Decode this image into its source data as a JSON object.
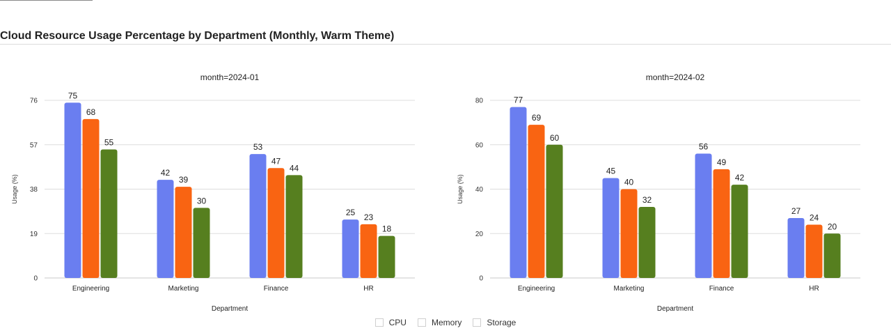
{
  "page": {
    "title": "Cloud Resource Usage Percentage by Department (Monthly, Warm Theme)"
  },
  "legend": [
    {
      "label": "CPU"
    },
    {
      "label": "Memory"
    },
    {
      "label": "Storage"
    }
  ],
  "colors": {
    "CPU": "#6a7ef0",
    "Memory": "#f96412",
    "Storage": "#567f1f"
  },
  "chart_data": [
    {
      "type": "bar",
      "title": "month=2024-01",
      "xlabel": "Department",
      "ylabel": "Usage (%)",
      "categories": [
        "Engineering",
        "Marketing",
        "Finance",
        "HR"
      ],
      "yticks": [
        0,
        19,
        38,
        57,
        76
      ],
      "ylim": [
        0,
        76
      ],
      "grid": true,
      "series": [
        {
          "name": "CPU",
          "values": [
            75,
            42,
            53,
            25
          ]
        },
        {
          "name": "Memory",
          "values": [
            68,
            39,
            47,
            23
          ]
        },
        {
          "name": "Storage",
          "values": [
            55,
            30,
            44,
            18
          ]
        }
      ]
    },
    {
      "type": "bar",
      "title": "month=2024-02",
      "xlabel": "Department",
      "ylabel": "Usage (%)",
      "categories": [
        "Engineering",
        "Marketing",
        "Finance",
        "HR"
      ],
      "yticks": [
        0,
        20,
        40,
        60,
        80
      ],
      "ylim": [
        0,
        80
      ],
      "grid": true,
      "series": [
        {
          "name": "CPU",
          "values": [
            77,
            45,
            56,
            27
          ]
        },
        {
          "name": "Memory",
          "values": [
            69,
            40,
            49,
            24
          ]
        },
        {
          "name": "Storage",
          "values": [
            60,
            32,
            42,
            20
          ]
        }
      ]
    }
  ]
}
